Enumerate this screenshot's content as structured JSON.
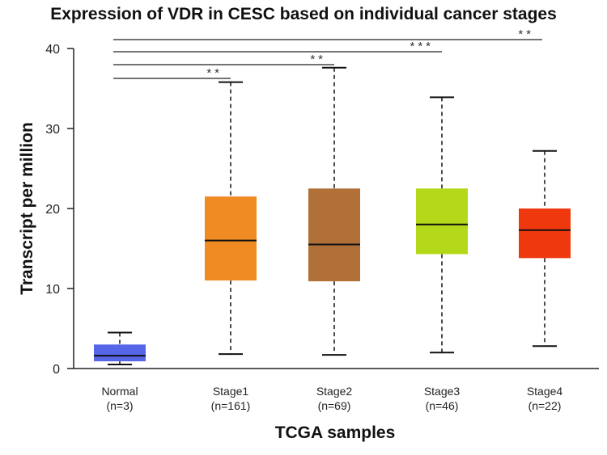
{
  "chart_data": {
    "type": "box",
    "title": "Expression of VDR in CESC based on individual cancer stages",
    "xlabel": "TCGA samples",
    "ylabel": "Transcript per million",
    "ylim": [
      0,
      40
    ],
    "yticks": [
      0,
      10,
      20,
      30,
      40
    ],
    "grid": false,
    "categories": [
      {
        "name": "Normal",
        "n": "(n=3)",
        "color": "#5566e6",
        "whisker_low": 0.5,
        "q1": 0.9,
        "median": 1.6,
        "q3": 3.0,
        "whisker_high": 4.5
      },
      {
        "name": "Stage1",
        "n": "(n=161)",
        "color": "#f08a22",
        "whisker_low": 1.8,
        "q1": 11.0,
        "median": 16.0,
        "q3": 21.5,
        "whisker_high": 35.8
      },
      {
        "name": "Stage2",
        "n": "(n=69)",
        "color": "#b07038",
        "whisker_low": 1.7,
        "q1": 10.9,
        "median": 15.5,
        "q3": 22.5,
        "whisker_high": 37.6
      },
      {
        "name": "Stage3",
        "n": "(n=46)",
        "color": "#b3d91a",
        "whisker_low": 2.0,
        "q1": 14.3,
        "median": 18.0,
        "q3": 22.5,
        "whisker_high": 33.9
      },
      {
        "name": "Stage4",
        "n": "(n=22)",
        "color": "#f0380f",
        "whisker_low": 2.8,
        "q1": 13.8,
        "median": 17.3,
        "q3": 20.0,
        "whisker_high": 27.2
      }
    ],
    "significance": [
      {
        "from": "Normal",
        "to": "Stage1",
        "label": "**"
      },
      {
        "from": "Normal",
        "to": "Stage2",
        "label": "**"
      },
      {
        "from": "Normal",
        "to": "Stage3",
        "label": "***"
      },
      {
        "from": "Normal",
        "to": "Stage4",
        "label": "**"
      }
    ]
  }
}
